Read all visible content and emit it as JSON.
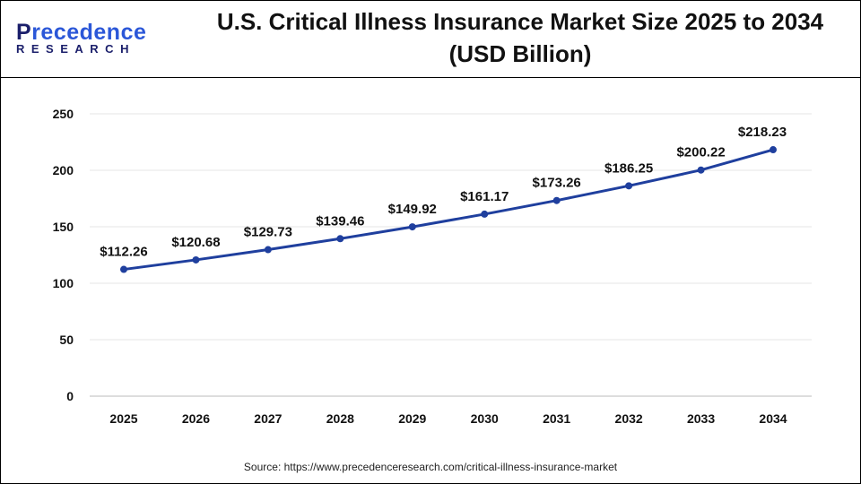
{
  "logo": {
    "line1": "Precedence",
    "line2": "RESEARCH"
  },
  "title_line1": "U.S. Critical Illness Insurance Market Size 2025 to 2034",
  "title_line2": "(USD Billion)",
  "source": "Source: https://www.precedenceresearch.com/critical-illness-insurance-market",
  "chart_data": {
    "type": "line",
    "title": "U.S. Critical Illness Insurance Market Size 2025 to 2034 (USD Billion)",
    "categories": [
      "2025",
      "2026",
      "2027",
      "2028",
      "2029",
      "2030",
      "2031",
      "2032",
      "2033",
      "2034"
    ],
    "values": [
      112.26,
      120.68,
      129.73,
      139.46,
      149.92,
      161.17,
      173.26,
      186.25,
      200.22,
      218.23
    ],
    "data_labels": [
      "$112.26",
      "$120.68",
      "$129.73",
      "$139.46",
      "$149.92",
      "$161.17",
      "$173.26",
      "$186.25",
      "$200.22",
      "$218.23"
    ],
    "yticks": [
      0,
      50,
      100,
      150,
      200,
      250
    ],
    "ylim": [
      0,
      250
    ],
    "grid": true,
    "line_color": "#1f3f9e"
  }
}
